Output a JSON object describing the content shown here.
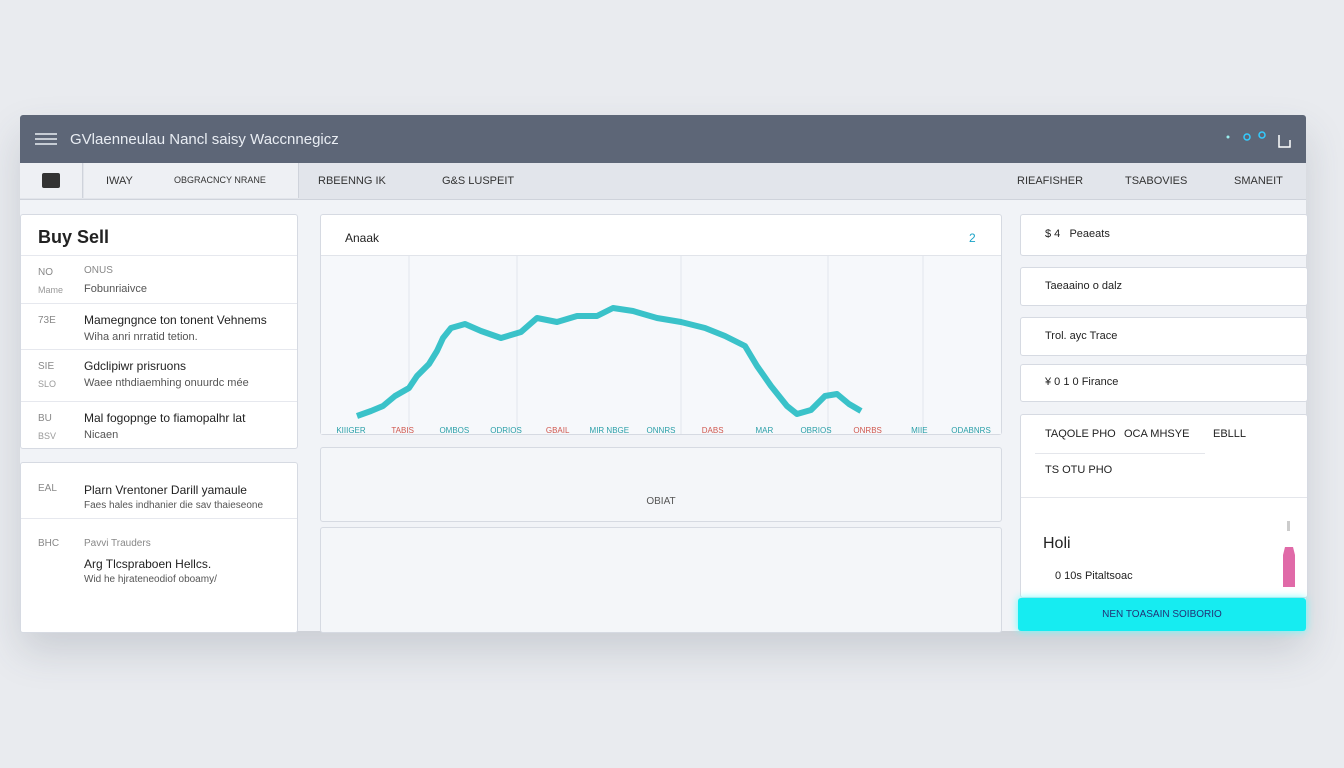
{
  "window": {
    "title": "GVlaenneulau Nancl saisy Waccnnegicz",
    "tabs_left": [
      "IWAY",
      "OBGRACNCY NRANE",
      "RBEENNG IK",
      "G&S LUSPEIT"
    ],
    "tabs_right": [
      "RIEAFISHER",
      "TSABOVIES",
      "SMANEIT"
    ]
  },
  "left_panel": {
    "title": "Buy Sell",
    "rows": [
      {
        "code": "NO",
        "sub_code": "Mame",
        "text": "ONUS",
        "sub_text": "Fobunriaivce"
      },
      {
        "code": "73E",
        "sub_code": "",
        "text": "Mamegngnce ton tonent Vehnems",
        "sub_text": "Wiha anri nrratid tetion."
      },
      {
        "code": "SIE",
        "sub_code": "SLO",
        "text": "Gdclipiwr prisruons",
        "sub_text": "Waee nthdiaemhing onuurdc mée"
      },
      {
        "code": "BU",
        "sub_code": "BSV",
        "text": "Mal fogopnge to fiamopalhr lat",
        "sub_text": "Nicaen"
      }
    ],
    "rows2": [
      {
        "code": "EAL",
        "text": "Plarn Vrentoner Darill yamaule",
        "sub_text": "Faes hales indhanier die sav thaieseone"
      },
      {
        "code": "BHC",
        "label": "Pavvi Trauders",
        "text": "Arg Tlcspraboen Hellcs.",
        "sub_text": "Wid he hjrateneodiof oboamy/"
      }
    ]
  },
  "chart_panel": {
    "title": "Anaak",
    "badge": "2",
    "x_labels": [
      "KIIIGER",
      "TABIS",
      "OMBOS",
      "ODRIOS",
      "GBAIL",
      "MIR NBGE",
      "ONNRS",
      "DABS",
      "MAR",
      "OBRIOS",
      "ONRBS",
      "MIIE",
      "ODABNRS"
    ],
    "box_label": "OBIAT"
  },
  "right_panel": {
    "items": [
      "$ 4   Peaeats",
      "Taeaaino o dalz",
      "Trol. ayc Trace",
      "¥ 0 1 0 Firance"
    ],
    "table_header": [
      "TAQOLE PHO",
      "OCA MHSYE",
      "EBLLL"
    ],
    "table_row": "TS OTU PHO",
    "hold_title": "Holi",
    "hold_text": "0 10s Pitaltsoac",
    "button": "NEN TOASAIN SOIBORIO"
  }
}
